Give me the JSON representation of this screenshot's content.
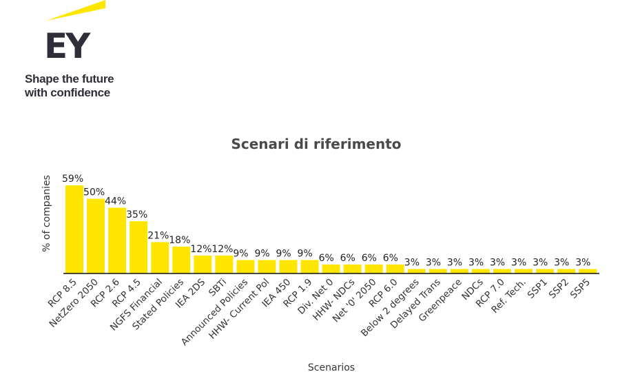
{
  "brand": {
    "logo_text": "EY",
    "tagline_line1": "Shape the future",
    "tagline_line2": "with confidence",
    "accent_color": "#ffe600",
    "text_color": "#2e2e38"
  },
  "chart_data": {
    "type": "bar",
    "title": "Scenari di riferimento",
    "xlabel": "Scenarios",
    "ylabel": "% of companies",
    "bar_color": "#ffe600",
    "ylim": [
      0,
      60
    ],
    "grid": false,
    "categories": [
      "RCP 8.5",
      "NetZero 2050",
      "RCP 2.6",
      "RCP 4.5",
      "NGFS Financial",
      "Stated Policies",
      "IEA 2DS",
      "SBTi",
      "Announced Policies",
      "HHW- Current Pol",
      "IEA 450",
      "RCP 1.9",
      "Div. Net 0",
      "HHW- NDCs",
      "Net '0' 2050",
      "RCP 6.0",
      "Below 2 degrees",
      "Delayed Trans",
      "Greenpeace",
      "NDCs",
      "RCP 7.0",
      "Ref. Tech.",
      "SSP1",
      "SSP2",
      "SSP5"
    ],
    "values": [
      59,
      50,
      44,
      35,
      21,
      18,
      12,
      12,
      9,
      9,
      9,
      9,
      6,
      6,
      6,
      6,
      3,
      3,
      3,
      3,
      3,
      3,
      3,
      3,
      3
    ],
    "value_labels": [
      "59%",
      "50%",
      "44%",
      "35%",
      "21%",
      "18%",
      "12%",
      "12%",
      "9%",
      "9%",
      "9%",
      "9%",
      "6%",
      "6%",
      "6%",
      "6%",
      "3%",
      "3%",
      "3%",
      "3%",
      "3%",
      "3%",
      "3%",
      "3%",
      "3%"
    ]
  }
}
